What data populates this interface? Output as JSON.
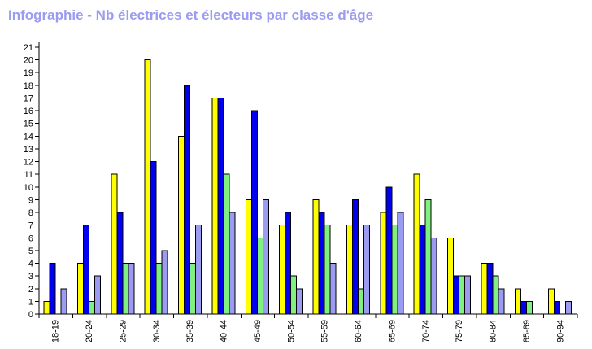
{
  "chart_data": {
    "type": "bar",
    "title": "Infographie - Nb électrices et électeurs par classe d'âge",
    "xlabel": "",
    "ylabel": "",
    "ylim": [
      0,
      21
    ],
    "yticks": [
      0,
      1,
      2,
      3,
      4,
      5,
      6,
      7,
      8,
      9,
      10,
      11,
      12,
      13,
      14,
      15,
      16,
      17,
      18,
      19,
      20,
      21
    ],
    "grid": false,
    "legend": "none",
    "categories": [
      "18-19",
      "20-24",
      "25-29",
      "30-34",
      "35-39",
      "40-44",
      "45-49",
      "50-54",
      "55-59",
      "60-64",
      "65-69",
      "70-74",
      "75-79",
      "80-84",
      "85-89",
      "90-94"
    ],
    "series": [
      {
        "color": "#ffff00",
        "values": [
          1,
          4,
          11,
          20,
          14,
          17,
          9,
          7,
          9,
          7,
          8,
          11,
          6,
          4,
          2,
          2
        ]
      },
      {
        "color": "#0000ee",
        "values": [
          4,
          7,
          8,
          12,
          18,
          17,
          16,
          8,
          8,
          9,
          10,
          7,
          3,
          4,
          1,
          1
        ]
      },
      {
        "color": "#80f080",
        "values": [
          0,
          1,
          4,
          4,
          4,
          11,
          6,
          3,
          7,
          2,
          7,
          9,
          3,
          3,
          1,
          0
        ]
      },
      {
        "color": "#9b9bf2",
        "values": [
          2,
          3,
          4,
          5,
          7,
          8,
          9,
          2,
          4,
          7,
          8,
          6,
          3,
          2,
          0,
          1
        ]
      }
    ]
  }
}
